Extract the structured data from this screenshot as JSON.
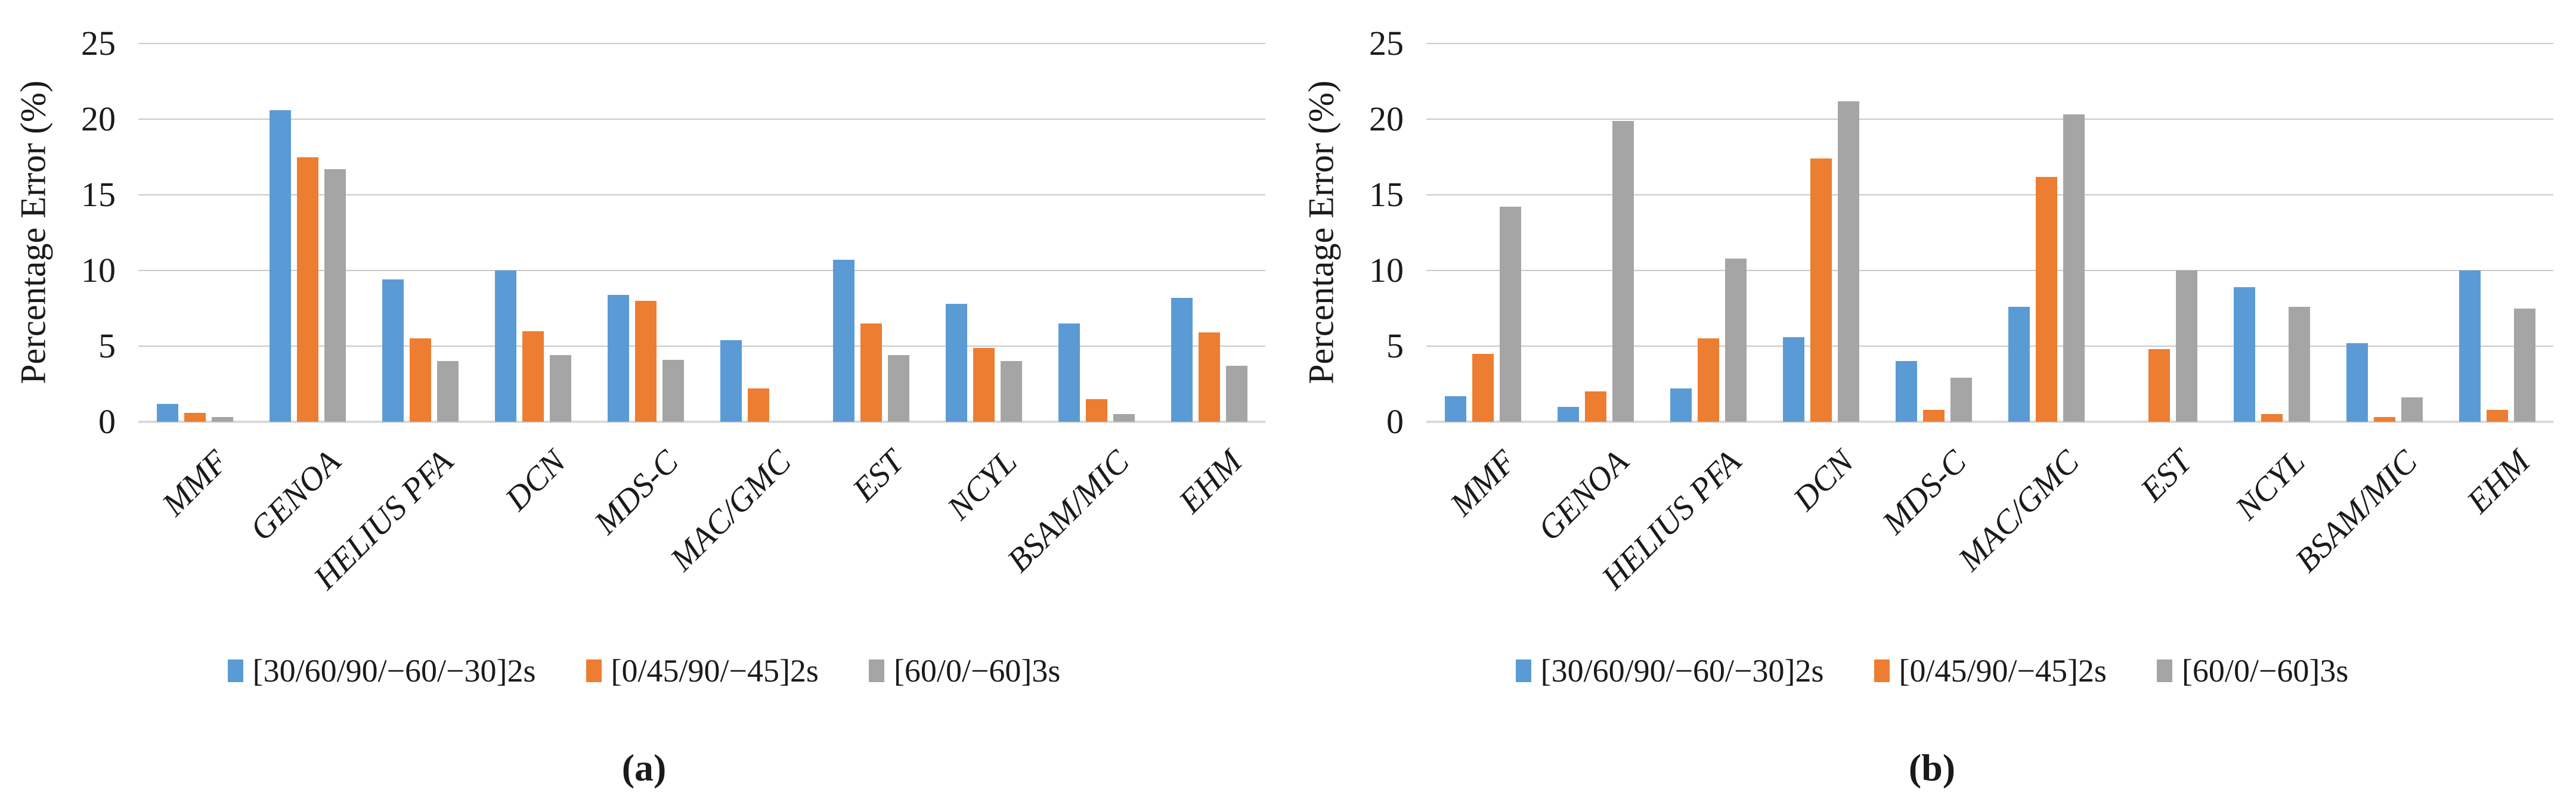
{
  "figure": {
    "background": "#ffffff",
    "text_color": "#1a1a1a",
    "gridline_color": "#c9c9c9",
    "axis_line_color": "#d9d9d9"
  },
  "chart_data": [
    {
      "id": "a",
      "type": "bar",
      "title": "",
      "ylabel": "Percentage Error (%)",
      "xlabel": "",
      "ylim": [
        0,
        25
      ],
      "y_ticks": [
        0,
        5,
        10,
        15,
        20,
        25
      ],
      "grid": true,
      "legend_position": "bottom",
      "caption": "(a)",
      "categories": [
        "MMF",
        "GENOA",
        "HELIUS PFA",
        "DCN",
        "MDS-C",
        "MAC/GMC",
        "EST",
        "NCYL",
        "BSAM/MIC",
        "EHM"
      ],
      "series": [
        {
          "name": "[30/60/90/−60/−30]2s",
          "color": "#5B9BD5",
          "values": [
            1.2,
            20.6,
            9.4,
            10.0,
            8.4,
            5.4,
            10.7,
            7.8,
            6.5,
            8.2
          ]
        },
        {
          "name": "[0/45/90/−45]2s",
          "color": "#ED7D31",
          "values": [
            0.6,
            17.5,
            5.5,
            6.0,
            8.0,
            2.2,
            6.5,
            4.9,
            1.5,
            5.9
          ]
        },
        {
          "name": "[60/0/−60]3s",
          "color": "#A5A5A5",
          "values": [
            0.3,
            16.7,
            4.0,
            4.4,
            4.1,
            0,
            4.4,
            4.0,
            0.5,
            3.7
          ]
        }
      ]
    },
    {
      "id": "b",
      "type": "bar",
      "title": "",
      "ylabel": "Percentage Error (%)",
      "xlabel": "",
      "ylim": [
        0,
        25
      ],
      "y_ticks": [
        0,
        5,
        10,
        15,
        20,
        25
      ],
      "grid": true,
      "legend_position": "bottom",
      "caption": "(b)",
      "categories": [
        "MMF",
        "GENOA",
        "HELIUS PFA",
        "DCN",
        "MDS-C",
        "MAC/GMC",
        "EST",
        "NCYL",
        "BSAM/MIC",
        "EHM"
      ],
      "series": [
        {
          "name": "[30/60/90/−60/−30]2s",
          "color": "#5B9BD5",
          "values": [
            1.7,
            1.0,
            2.2,
            5.6,
            4.0,
            7.6,
            0,
            8.9,
            5.2,
            10.0
          ]
        },
        {
          "name": "[0/45/90/−45]2s",
          "color": "#ED7D31",
          "values": [
            4.5,
            2.0,
            5.5,
            17.4,
            0.8,
            16.2,
            4.8,
            0.5,
            0.3,
            0.8
          ]
        },
        {
          "name": "[60/0/−60]3s",
          "color": "#A5A5A5",
          "values": [
            14.2,
            19.9,
            10.8,
            21.2,
            2.9,
            20.3,
            10.0,
            7.6,
            1.6,
            7.5
          ]
        }
      ]
    }
  ]
}
